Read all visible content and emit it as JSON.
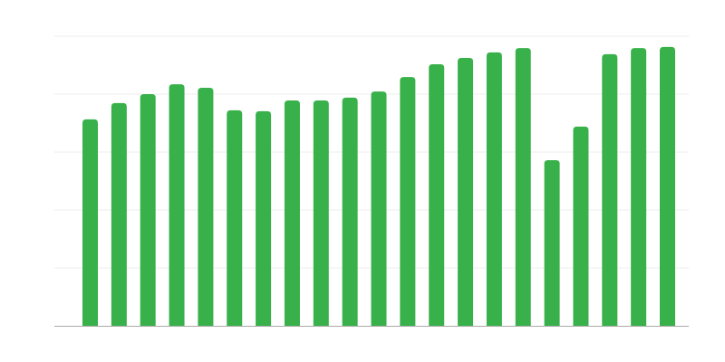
{
  "chart_data": {
    "type": "bar",
    "title": "",
    "xlabel": "",
    "ylabel": "",
    "ylim": [
      0,
      100
    ],
    "grid": true,
    "gridlines": [
      0,
      20,
      40,
      60,
      80,
      100
    ],
    "bar_color": "#38b14a",
    "grid_color": "#eeeeee",
    "axis_color": "#aaaaaa",
    "values": [
      71.3,
      76.9,
      80.0,
      83.4,
      82.2,
      74.4,
      74.1,
      77.8,
      77.8,
      78.8,
      80.9,
      85.9,
      90.3,
      92.5,
      94.4,
      95.9,
      57.2,
      68.8,
      93.8,
      95.9,
      96.3
    ]
  }
}
